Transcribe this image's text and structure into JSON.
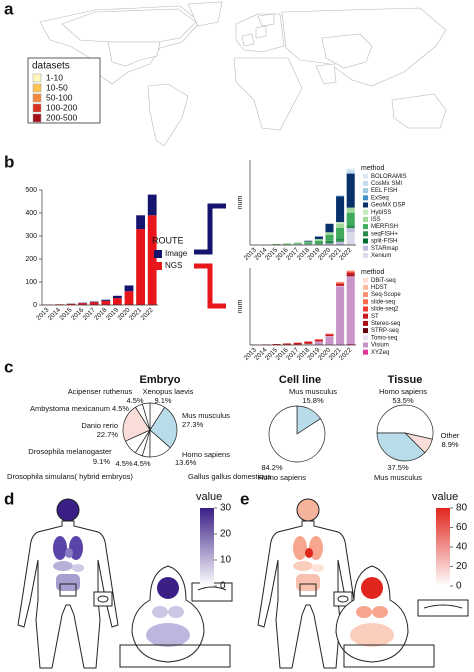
{
  "panel_labels": [
    "a",
    "b",
    "c",
    "d",
    "e"
  ],
  "chart_data": [
    {
      "type": "map",
      "legend_title": "datasets",
      "categories": [
        "1-10",
        "10-50",
        "50-100",
        "100-200",
        "200-500"
      ],
      "colors": [
        "#fff7bc",
        "#fec44f",
        "#f6883d",
        "#d7301f",
        "#a50f15"
      ]
    },
    {
      "type": "bar",
      "stacked": true,
      "legend_title": "ROUTE",
      "categories": [
        "2013",
        "2014",
        "2015",
        "2016",
        "2017",
        "2018",
        "2019",
        "2020",
        "2021",
        "2022"
      ],
      "series": [
        {
          "name": "Image",
          "color": "#14146e",
          "values": [
            0,
            0,
            1,
            2,
            3,
            5,
            10,
            25,
            60,
            90
          ]
        },
        {
          "name": "NGS",
          "color": "#e8161b",
          "values": [
            2,
            3,
            5,
            8,
            12,
            18,
            30,
            60,
            330,
            390
          ]
        }
      ],
      "ylim": [
        0,
        500
      ],
      "yticks": [
        0,
        100,
        200,
        300,
        400,
        500
      ]
    },
    {
      "type": "bar",
      "stacked": true,
      "ylabel": "num",
      "legend_title": "method",
      "categories": [
        "2013",
        "2014",
        "2015",
        "2016",
        "2017",
        "2018",
        "2019",
        "2020",
        "2021",
        "2022"
      ],
      "series": [
        {
          "name": "BOLORAMIS",
          "color": "#deebf7",
          "values": [
            0,
            0,
            0,
            0,
            0,
            0,
            0,
            0,
            0,
            2
          ]
        },
        {
          "name": "CosMx SMI",
          "color": "#c6dbef",
          "values": [
            0,
            0,
            0,
            0,
            0,
            0,
            0,
            0,
            0,
            3
          ]
        },
        {
          "name": "EEL FISH",
          "color": "#9ecae1",
          "values": [
            0,
            0,
            0,
            0,
            0,
            0,
            0,
            0,
            0,
            1
          ]
        },
        {
          "name": "ExSeq",
          "color": "#4292c6",
          "values": [
            0,
            0,
            0,
            0,
            0,
            0,
            0,
            0,
            1,
            0
          ]
        },
        {
          "name": "GeoMX DSP",
          "color": "#08306b",
          "values": [
            0,
            0,
            0,
            0,
            0,
            1,
            3,
            10,
            30,
            40
          ]
        },
        {
          "name": "HybISS",
          "color": "#c7e9c0",
          "values": [
            0,
            0,
            0,
            0,
            0,
            0,
            0,
            0,
            2,
            0
          ]
        },
        {
          "name": "ISS",
          "color": "#a1d99b",
          "values": [
            0,
            0,
            0,
            1,
            1,
            1,
            2,
            3,
            5,
            6
          ]
        },
        {
          "name": "MERFISH",
          "color": "#41ab5d",
          "values": [
            0,
            0,
            1,
            1,
            1,
            2,
            3,
            7,
            12,
            15
          ]
        },
        {
          "name": "seqFISH+",
          "color": "#238b45",
          "values": [
            0,
            0,
            0,
            0,
            0,
            0,
            1,
            2,
            3,
            3
          ]
        },
        {
          "name": "split-FISH",
          "color": "#006d2c",
          "values": [
            0,
            0,
            0,
            0,
            0,
            0,
            0,
            1,
            1,
            0
          ]
        },
        {
          "name": "STARmap",
          "color": "#bcbddc",
          "values": [
            0,
            0,
            0,
            0,
            1,
            1,
            1,
            2,
            4,
            5
          ]
        },
        {
          "name": "Xenium",
          "color": "#dadaeb",
          "values": [
            0,
            0,
            0,
            0,
            0,
            0,
            0,
            0,
            0,
            15
          ]
        }
      ],
      "ylim": [
        0,
        100
      ]
    },
    {
      "type": "bar",
      "stacked": true,
      "ylabel": "num",
      "legend_title": "method",
      "categories": [
        "2013",
        "2014",
        "2015",
        "2016",
        "2017",
        "2018",
        "2019",
        "2020",
        "2021",
        "2022"
      ],
      "series": [
        {
          "name": "DBiT-seq",
          "color": "#fee0d2",
          "values": [
            0,
            0,
            0,
            0,
            0,
            0,
            0,
            0,
            3,
            4
          ]
        },
        {
          "name": "HDST",
          "color": "#fcbba1",
          "values": [
            0,
            0,
            0,
            0,
            0,
            0,
            0,
            1,
            1,
            0
          ]
        },
        {
          "name": "Seq-Scope",
          "color": "#fc9272",
          "values": [
            0,
            0,
            0,
            0,
            0,
            0,
            0,
            0,
            0,
            2
          ]
        },
        {
          "name": "slide-seq",
          "color": "#fb6a4a",
          "values": [
            0,
            0,
            0,
            0,
            0,
            0,
            2,
            3,
            5,
            4
          ]
        },
        {
          "name": "slide-seq2",
          "color": "#ef3b2c",
          "values": [
            0,
            0,
            0,
            0,
            0,
            0,
            0,
            0,
            4,
            5
          ]
        },
        {
          "name": "ST",
          "color": "#cb181d",
          "values": [
            2,
            3,
            5,
            7,
            10,
            12,
            10,
            10,
            10,
            8
          ]
        },
        {
          "name": "Stereo-seq",
          "color": "#a50f15",
          "values": [
            0,
            0,
            0,
            0,
            0,
            0,
            0,
            0,
            0,
            10
          ]
        },
        {
          "name": "STRP-seq",
          "color": "#67000d",
          "values": [
            0,
            0,
            0,
            0,
            0,
            0,
            0,
            0,
            0,
            1
          ]
        },
        {
          "name": "Tomo-seq",
          "color": "#e7e1ef",
          "values": [
            0,
            0,
            0,
            1,
            2,
            2,
            2,
            2,
            2,
            1
          ]
        },
        {
          "name": "Visium",
          "color": "#c994c7",
          "values": [
            0,
            0,
            0,
            0,
            0,
            4,
            16,
            44,
            303,
            350
          ]
        },
        {
          "name": "XYZeq",
          "color": "#dd3497",
          "values": [
            0,
            0,
            0,
            0,
            0,
            0,
            0,
            0,
            2,
            5
          ]
        }
      ],
      "ylim": [
        0,
        400
      ]
    },
    {
      "type": "pie",
      "title": "Embryo",
      "categories": [
        "Xenopus laevis",
        "Mus musculus",
        "Homo sapiens",
        "Gallus gallus domesticus",
        "Drosophila simulans( hybrid embryos)",
        "Drosophila melanogaster",
        "Danio rerio",
        "Ambystoma mexicanum",
        "Acipenser ruthenus"
      ],
      "values": [
        9.1,
        27.3,
        13.6,
        4.5,
        4.5,
        9.1,
        22.7,
        4.5,
        4.5
      ],
      "value_labels": [
        "9.1%",
        "27.3%",
        "13.6%",
        "4.5%",
        "4.5%",
        "9.1%",
        "22.7%",
        "4.5%",
        "4.5%"
      ],
      "colors": [
        "#ffffff",
        "#b9dcea",
        "#ffffff",
        "#ffffff",
        "#ffffff",
        "#ffffff",
        "#f9ddd8",
        "#ffffff",
        "#ffffff"
      ]
    },
    {
      "type": "pie",
      "title": "Cell line",
      "categories": [
        "Mus musculus",
        "Homo sapiens"
      ],
      "values": [
        15.8,
        84.2
      ],
      "value_labels": [
        "15.8%",
        "84.2%"
      ],
      "colors": [
        "#b9dcea",
        "#ffffff"
      ]
    },
    {
      "type": "pie",
      "title": "Tissue",
      "categories": [
        "Homo sapiens",
        "Other",
        "Mus musculus"
      ],
      "values": [
        53.5,
        8.9,
        37.5
      ],
      "value_labels": [
        "53.5%",
        "8.9%",
        "37.5%"
      ],
      "colors": [
        "#ffffff",
        "#f9ddd8",
        "#b9dcea"
      ]
    },
    {
      "type": "body-map",
      "legend_title": "value",
      "colors": [
        "#ffffff",
        "#3b1f86"
      ],
      "clim": [
        0,
        30
      ],
      "cticks": [
        0,
        10,
        20,
        30
      ]
    },
    {
      "type": "body-map",
      "legend_title": "value",
      "colors": [
        "#ffffff",
        "#e0261d"
      ],
      "clim": [
        0,
        80
      ],
      "cticks": [
        0,
        20,
        40,
        60,
        80
      ]
    }
  ]
}
